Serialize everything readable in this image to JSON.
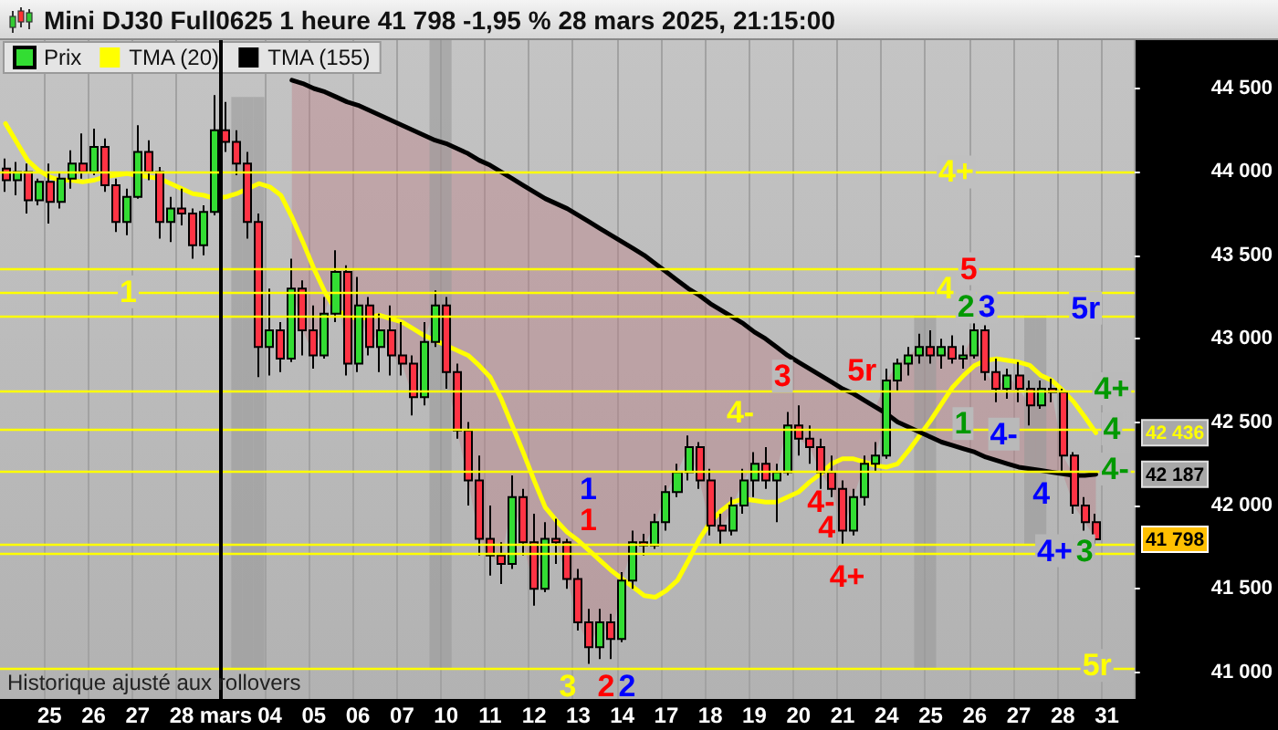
{
  "chart_data": {
    "type": "candlestick",
    "title": "Mini DJ30 Full0625 1 heure 41 798 -1,95 % 28 mars 2025, 21:15:00",
    "categories": [
      null,
      null,
      null,
      null,
      "25",
      null,
      null,
      null,
      "26",
      null,
      null,
      null,
      "27",
      null,
      null,
      null,
      "28",
      null,
      null,
      null,
      "mars",
      null,
      null,
      null,
      "04",
      null,
      null,
      null,
      "05",
      null,
      null,
      null,
      "06",
      null,
      null,
      null,
      "07",
      null,
      null,
      null,
      "10",
      null,
      null,
      null,
      "11",
      null,
      null,
      null,
      "12",
      null,
      null,
      null,
      "13",
      null,
      null,
      null,
      "14",
      null,
      null,
      null,
      "17",
      null,
      null,
      null,
      "18",
      null,
      null,
      null,
      "19",
      null,
      null,
      null,
      "20",
      null,
      null,
      null,
      "21",
      null,
      null,
      null,
      "24",
      null,
      null,
      null,
      "25",
      null,
      null,
      null,
      "26",
      null,
      null,
      null,
      "27",
      null,
      null,
      null,
      "28",
      null,
      null,
      null,
      "31",
      null,
      null
    ],
    "ylim": [
      40840,
      44790
    ],
    "yticks": [
      {
        "value": 41000,
        "label": "41 000"
      },
      {
        "value": 41500,
        "label": "41 500"
      },
      {
        "value": 42000,
        "label": "42 000"
      },
      {
        "value": 42500,
        "label": "42 500"
      },
      {
        "value": 43000,
        "label": "43 000"
      },
      {
        "value": 43500,
        "label": "43 500"
      },
      {
        "value": 44000,
        "label": "44 000"
      },
      {
        "value": 44500,
        "label": "44 500"
      }
    ],
    "grid": "x",
    "legend": "top left",
    "series": [
      {
        "name": "Prix",
        "ohlc": [
          [
            44020,
            44080,
            43880,
            43950
          ],
          [
            43950,
            44060,
            43860,
            44000
          ],
          [
            44000,
            44050,
            43750,
            43830
          ],
          [
            43830,
            43960,
            43800,
            43940
          ],
          [
            43940,
            44050,
            43690,
            43820
          ],
          [
            43820,
            44000,
            43780,
            43960
          ],
          [
            43960,
            44130,
            43900,
            44050
          ],
          [
            44050,
            44230,
            43960,
            44000
          ],
          [
            44000,
            44260,
            43980,
            44150
          ],
          [
            44150,
            44200,
            43880,
            43920
          ],
          [
            43920,
            43960,
            43640,
            43700
          ],
          [
            43700,
            43900,
            43620,
            43850
          ],
          [
            43850,
            44280,
            43840,
            44120
          ],
          [
            44120,
            44190,
            43950,
            44000
          ],
          [
            44000,
            44030,
            43600,
            43700
          ],
          [
            43700,
            43850,
            43580,
            43780
          ],
          [
            43780,
            43900,
            43680,
            43750
          ],
          [
            43750,
            43780,
            43480,
            43560
          ],
          [
            43560,
            43800,
            43500,
            43760
          ],
          [
            43760,
            44460,
            43740,
            44250
          ],
          [
            44250,
            44420,
            44120,
            44180
          ],
          [
            44180,
            44250,
            43980,
            44050
          ],
          [
            44050,
            44120,
            43600,
            43700
          ],
          [
            43700,
            43750,
            42770,
            42950
          ],
          [
            42950,
            43300,
            42780,
            43050
          ],
          [
            43050,
            43100,
            42800,
            42880
          ],
          [
            42880,
            43480,
            42860,
            43300
          ],
          [
            43300,
            43350,
            42900,
            43050
          ],
          [
            43050,
            43200,
            42820,
            42900
          ],
          [
            42900,
            43250,
            42880,
            43150
          ],
          [
            43150,
            43530,
            43100,
            43400
          ],
          [
            43400,
            43440,
            42780,
            42850
          ],
          [
            42850,
            43370,
            42800,
            43200
          ],
          [
            43200,
            43250,
            42900,
            42950
          ],
          [
            42950,
            43150,
            42800,
            43050
          ],
          [
            43050,
            43200,
            42780,
            42900
          ],
          [
            42900,
            43100,
            42780,
            42850
          ],
          [
            42850,
            42900,
            42540,
            42650
          ],
          [
            42650,
            43100,
            42600,
            42980
          ],
          [
            42980,
            43290,
            42950,
            43200
          ],
          [
            43200,
            43250,
            42700,
            42800
          ],
          [
            42800,
            42850,
            42400,
            42450
          ],
          [
            42450,
            42500,
            42000,
            42150
          ],
          [
            42150,
            42300,
            41700,
            41800
          ],
          [
            41800,
            42000,
            41580,
            41700
          ],
          [
            41700,
            41780,
            41530,
            41650
          ],
          [
            41650,
            42180,
            41620,
            42050
          ],
          [
            42050,
            42100,
            41700,
            41780
          ],
          [
            41780,
            41950,
            41400,
            41500
          ],
          [
            41500,
            41900,
            41480,
            41800
          ],
          [
            41800,
            41920,
            41650,
            41780
          ],
          [
            41780,
            41800,
            41500,
            41560
          ],
          [
            41560,
            41620,
            41250,
            41300
          ],
          [
            41300,
            41380,
            41050,
            41150
          ],
          [
            41150,
            41380,
            41080,
            41300
          ],
          [
            41300,
            41350,
            41080,
            41200
          ],
          [
            41200,
            41600,
            41180,
            41550
          ],
          [
            41550,
            41850,
            41500,
            41780
          ],
          [
            41780,
            41830,
            41700,
            41760
          ],
          [
            41760,
            41950,
            41740,
            41900
          ],
          [
            41900,
            42120,
            41850,
            42080
          ],
          [
            42080,
            42250,
            42050,
            42200
          ],
          [
            42200,
            42420,
            42150,
            42350
          ],
          [
            42350,
            42380,
            42100,
            42150
          ],
          [
            42150,
            42220,
            41820,
            41880
          ],
          [
            41880,
            41950,
            41760,
            41850
          ],
          [
            41850,
            42050,
            41820,
            42000
          ],
          [
            42000,
            42220,
            41950,
            42150
          ],
          [
            42150,
            42320,
            42050,
            42250
          ],
          [
            42250,
            42350,
            42100,
            42150
          ],
          [
            42150,
            42250,
            41900,
            42200
          ],
          [
            42200,
            42560,
            42180,
            42480
          ],
          [
            42480,
            42600,
            42300,
            42400
          ],
          [
            42400,
            42480,
            42250,
            42350
          ],
          [
            42350,
            42400,
            42100,
            42200
          ],
          [
            42200,
            42300,
            42050,
            42100
          ],
          [
            42100,
            42150,
            41760,
            41850
          ],
          [
            41850,
            42100,
            41820,
            42050
          ],
          [
            42050,
            42300,
            42000,
            42250
          ],
          [
            42250,
            42380,
            42200,
            42300
          ],
          [
            42300,
            42820,
            42280,
            42750
          ],
          [
            42750,
            42880,
            42680,
            42850
          ],
          [
            42850,
            42950,
            42780,
            42900
          ],
          [
            42900,
            43030,
            42850,
            42950
          ],
          [
            42950,
            43050,
            42850,
            42900
          ],
          [
            42900,
            43000,
            42820,
            42950
          ],
          [
            42950,
            43020,
            42850,
            42880
          ],
          [
            42880,
            42960,
            42820,
            42900
          ],
          [
            42900,
            43120,
            42880,
            43050
          ],
          [
            43050,
            43080,
            42750,
            42800
          ],
          [
            42800,
            42880,
            42620,
            42700
          ],
          [
            42700,
            42820,
            42640,
            42780
          ],
          [
            42780,
            42860,
            42620,
            42700
          ],
          [
            42700,
            42750,
            42480,
            42600
          ],
          [
            42600,
            42750,
            42580,
            42700
          ],
          [
            42700,
            42760,
            42620,
            42680
          ],
          [
            42680,
            42700,
            42200,
            42300
          ],
          [
            42300,
            42320,
            41950,
            42000
          ],
          [
            42000,
            42050,
            41850,
            41900
          ],
          [
            41900,
            41950,
            41760,
            41798
          ],
          null,
          null,
          null
        ],
        "colors": [
          "#ff3344",
          "#33dd33",
          "#ff3344",
          "#33dd33",
          "#ff3344",
          "#33dd33",
          "#33dd33",
          "#ff3344",
          "#33dd33",
          "#ff3344",
          "#ff3344",
          "#33dd33",
          "#33dd33",
          "#ff3344",
          "#ff3344",
          "#33dd33",
          "#ff3344",
          "#ff3344",
          "#33dd33",
          "#33dd33",
          "#ff3344",
          "#ff3344",
          "#ff3344",
          "#ff3344",
          "#33dd33",
          "#ff3344",
          "#33dd33",
          "#ff3344",
          "#ff3344",
          "#33dd33",
          "#33dd33",
          "#ff3344",
          "#33dd33",
          "#ff3344",
          "#33dd33",
          "#ff3344",
          "#ff3344",
          "#ff3344",
          "#33dd33",
          "#33dd33",
          "#ff3344",
          "#ff3344",
          "#ff3344",
          "#ff3344",
          "#ff3344",
          "#ff3344",
          "#33dd33",
          "#ff3344",
          "#ff3344",
          "#33dd33",
          "#ff3344",
          "#ff3344",
          "#ff3344",
          "#ff3344",
          "#33dd33",
          "#ff3344",
          "#33dd33",
          "#33dd33",
          "#ff3344",
          "#33dd33",
          "#33dd33",
          "#33dd33",
          "#33dd33",
          "#ff3344",
          "#ff3344",
          "#ff3344",
          "#33dd33",
          "#33dd33",
          "#33dd33",
          "#ff3344",
          "#33dd33",
          "#33dd33",
          "#ff3344",
          "#ff3344",
          "#ff3344",
          "#ff3344",
          "#ff3344",
          "#33dd33",
          "#33dd33",
          "#33dd33",
          "#33dd33",
          "#33dd33",
          "#33dd33",
          "#33dd33",
          "#ff3344",
          "#33dd33",
          "#ff3344",
          "#33dd33",
          "#33dd33",
          "#ff3344",
          "#ff3344",
          "#33dd33",
          "#ff3344",
          "#ff3344",
          "#33dd33",
          "#ff3344",
          "#ff3344",
          "#ff3344",
          "#ff3344",
          "#ff3344",
          null,
          null,
          null
        ]
      },
      {
        "name": "TMA (20)",
        "type": "line",
        "color": "#ffff00",
        "values": [
          44290,
          44180,
          44070,
          44010,
          43970,
          43950,
          43950,
          43940,
          43950,
          43970,
          43980,
          43990,
          43980,
          43970,
          43960,
          43930,
          43900,
          43870,
          43860,
          43840,
          43850,
          43870,
          43900,
          43930,
          43910,
          43860,
          43730,
          43580,
          43420,
          43280,
          43170,
          43140,
          43120,
          43130,
          43140,
          43120,
          43100,
          43060,
          43020,
          42990,
          42960,
          42930,
          42900,
          42840,
          42770,
          42640,
          42480,
          42320,
          42150,
          41990,
          41910,
          41840,
          41790,
          41730,
          41670,
          41610,
          41560,
          41510,
          41460,
          41450,
          41490,
          41550,
          41670,
          41800,
          41900,
          41970,
          42020,
          42040,
          42030,
          42020,
          42020,
          42050,
          42080,
          42140,
          42190,
          42250,
          42280,
          42280,
          42260,
          42240,
          42230,
          42250,
          42330,
          42420,
          42510,
          42610,
          42710,
          42780,
          42840,
          42870,
          42880,
          42870,
          42860,
          42840,
          42780,
          42750,
          42690,
          42620,
          42530,
          42436,
          null,
          null,
          null
        ]
      },
      {
        "name": "TMA (155)",
        "type": "line",
        "color": "#000000",
        "values": [
          null,
          null,
          null,
          null,
          null,
          null,
          null,
          null,
          null,
          null,
          null,
          null,
          null,
          null,
          null,
          null,
          null,
          null,
          null,
          null,
          null,
          null,
          null,
          null,
          null,
          null,
          44550,
          44530,
          44500,
          44480,
          44450,
          44420,
          44400,
          44370,
          44340,
          44310,
          44280,
          44250,
          44220,
          44190,
          44170,
          44140,
          44110,
          44070,
          44040,
          44000,
          43960,
          43920,
          43880,
          43840,
          43810,
          43780,
          43740,
          43700,
          43660,
          43620,
          43580,
          43540,
          43500,
          43450,
          43400,
          43350,
          43300,
          43260,
          43210,
          43170,
          43130,
          43090,
          43040,
          43000,
          42950,
          42900,
          42860,
          42820,
          42780,
          42740,
          42700,
          42670,
          42630,
          42590,
          42550,
          42500,
          42470,
          42440,
          42410,
          42380,
          42360,
          42340,
          42320,
          42290,
          42270,
          42250,
          42230,
          42220,
          42210,
          42200,
          42190,
          42180,
          42180,
          42187,
          null,
          null,
          null
        ],
        "lower": [
          null,
          null,
          null,
          null,
          null,
          null,
          null,
          null,
          null,
          null,
          null,
          null,
          null,
          null,
          null,
          null,
          null,
          null,
          null,
          null,
          null,
          null,
          null,
          null,
          null,
          null,
          43300,
          43050,
          42900,
          43150,
          43400,
          42850,
          43200,
          42950,
          43050,
          42900,
          42850,
          42650,
          42980,
          43200,
          42800,
          42450,
          42150,
          41800,
          41700,
          41650,
          42050,
          41780,
          41500,
          41800,
          41780,
          41560,
          41300,
          41150,
          41300,
          41200,
          41550,
          41780,
          41760,
          41900,
          42080,
          42200,
          42350,
          42150,
          41880,
          41850,
          42000,
          42150,
          42250,
          42150,
          42200,
          42480,
          42400,
          42350,
          42200,
          42100,
          41850,
          42050,
          42250,
          42300,
          42550,
          42500,
          42470,
          42440,
          42410,
          42380,
          42360,
          42340,
          42320,
          42290,
          42270,
          42250,
          42230,
          42220,
          42210,
          42200,
          42190,
          42000,
          41900,
          41798,
          null,
          null,
          null
        ],
        "upper": [
          null,
          null,
          null,
          null,
          null,
          null,
          null,
          null,
          null,
          null,
          null,
          null,
          null,
          null,
          null,
          null,
          null,
          null,
          null,
          null,
          null,
          null,
          null,
          null,
          null,
          null,
          44550,
          44530,
          44500,
          44480,
          44450,
          44420,
          44400,
          44370,
          44340,
          44310,
          44280,
          44250,
          44220,
          44190,
          44170,
          44140,
          44110,
          44070,
          44040,
          44000,
          43960,
          43920,
          43880,
          43840,
          43810,
          43780,
          43740,
          43700,
          43660,
          43620,
          43580,
          43540,
          43500,
          43450,
          43400,
          43350,
          43300,
          43260,
          43210,
          43170,
          43130,
          43090,
          43040,
          43000,
          42950,
          42900,
          42860,
          42820,
          42780,
          42740,
          42700,
          42670,
          42630,
          42590,
          42750,
          42850,
          42900,
          42950,
          42900,
          42950,
          42880,
          42900,
          43050,
          42800,
          42700,
          42780,
          42700,
          42600,
          42700,
          42680,
          42300,
          42180,
          42180,
          42187,
          null,
          null,
          null
        ]
      },
      {
        "type": "bar",
        "color": "#999999",
        "values": [
          null,
          null,
          null,
          null,
          null,
          null,
          null,
          null,
          null,
          null,
          null,
          null,
          null,
          null,
          null,
          null,
          null,
          null,
          null,
          null,
          null,
          3430,
          3430,
          3430,
          null,
          null,
          null,
          null,
          null,
          null,
          null,
          null,
          null,
          null,
          null,
          null,
          null,
          null,
          null,
          3770,
          3770,
          null,
          null,
          null,
          null,
          null,
          null,
          null,
          null,
          null,
          null,
          null,
          null,
          null,
          null,
          null,
          null,
          null,
          null,
          null,
          null,
          null,
          null,
          null,
          null,
          null,
          null,
          null,
          null,
          null,
          null,
          null,
          null,
          null,
          null,
          null,
          null,
          null,
          null,
          null,
          null,
          null,
          null,
          2120,
          2120,
          null,
          null,
          null,
          null,
          null,
          null,
          null,
          null,
          1370,
          1370,
          null,
          null,
          null,
          null,
          null,
          null,
          null,
          null
        ],
        "base": [
          null,
          null,
          null,
          null,
          null,
          null,
          null,
          null,
          null,
          null,
          null,
          null,
          null,
          null,
          null,
          null,
          null,
          null,
          null,
          null,
          null,
          41020,
          41020,
          41020,
          null,
          null,
          null,
          null,
          null,
          null,
          null,
          null,
          null,
          null,
          null,
          null,
          null,
          null,
          null,
          41020,
          41020,
          null,
          null,
          null,
          null,
          null,
          null,
          null,
          null,
          null,
          null,
          null,
          null,
          null,
          null,
          null,
          null,
          null,
          null,
          null,
          null,
          null,
          null,
          null,
          null,
          null,
          null,
          null,
          null,
          null,
          null,
          null,
          null,
          null,
          null,
          null,
          null,
          null,
          null,
          null,
          null,
          null,
          null,
          41020,
          41020,
          null,
          null,
          null,
          null,
          null,
          null,
          null,
          null,
          41770,
          41770,
          null,
          null,
          null,
          null,
          null,
          null,
          null,
          null
        ]
      }
    ],
    "ref_lines": [
      {
        "axis": "y",
        "value": 44000,
        "color": "#ffff00"
      },
      {
        "axis": "y",
        "value": 43420,
        "color": "#ffff00"
      },
      {
        "axis": "y",
        "value": 43280,
        "color": "#ffff00"
      },
      {
        "axis": "y",
        "value": 43130,
        "color": "#ffff00"
      },
      {
        "axis": "y",
        "value": 42690,
        "color": "#ffff00"
      },
      {
        "axis": "y",
        "value": 42460,
        "color": "#ffff00"
      },
      {
        "axis": "y",
        "value": 42210,
        "color": "#ffff00"
      },
      {
        "axis": "y",
        "value": 41770,
        "color": "#ffff00"
      },
      {
        "axis": "y",
        "value": 41710,
        "color": "#ffff00"
      },
      {
        "axis": "y",
        "value": 41020,
        "color": "#ffff00"
      },
      {
        "axis": "x",
        "value": "mars",
        "color": "#000000"
      }
    ],
    "annotations": [
      "1",
      "4+",
      "5",
      "4",
      "2",
      "3",
      "5r",
      "4+",
      "4",
      "4-",
      "1",
      "4-",
      "4",
      "4+",
      "3",
      "5r",
      "1",
      "1",
      "3",
      "2",
      "2",
      "4-",
      "3",
      "5r",
      "4-",
      "4",
      "4+",
      "Historique ajusté aux rollovers",
      "42 436",
      "42 187",
      "41 798"
    ]
  }
}
